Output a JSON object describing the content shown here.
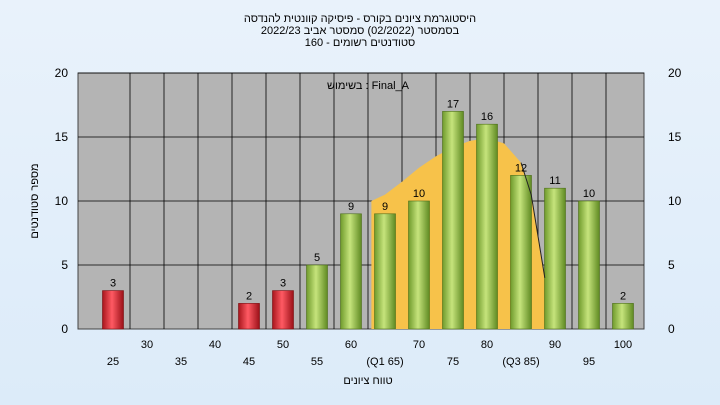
{
  "title": {
    "line1": "היסטוגרמת ציונים בקורס - פיסיקה קוונטית להנדסה",
    "line2": "בסמסטר  (02/2022)  סמסטר אביב 2022/23",
    "line3": "סטודנטים רשומים - 160"
  },
  "colors": {
    "plot_bg": "#b4b4b4",
    "grid": "#000000",
    "fail_bar": "#e0303a",
    "pass_bar": "#9acb50",
    "curve_fill": "#f7c24a",
    "page_bg": "#e2eefa"
  },
  "chart_data": {
    "type": "bar",
    "title": "היסטוגרמת ציונים בקורס - פיסיקה קוונטית להנדסה",
    "xlabel": "טווח ציונים",
    "ylabel": "מספר סטודנטים",
    "annotation": "בשימוש : Final_A",
    "ylim": [
      0,
      20
    ],
    "yticks": [
      0,
      5,
      10,
      15,
      20
    ],
    "grid": true,
    "categories": [
      "25",
      "30",
      "35",
      "40",
      "45",
      "50",
      "55",
      "60",
      "65",
      "70",
      "75",
      "80",
      "85",
      "90",
      "95",
      "100"
    ],
    "tick_labels": [
      "25",
      "30",
      "35",
      "40",
      "45",
      "50",
      "55",
      "60",
      "(Q1 65)",
      "70",
      "75",
      "80",
      "(Q3 85)",
      "90",
      "95",
      "100"
    ],
    "values": [
      3,
      0,
      0,
      0,
      2,
      3,
      5,
      9,
      9,
      10,
      17,
      16,
      12,
      11,
      10,
      2
    ],
    "bar_colors": [
      "fail",
      "fail",
      "fail",
      "fail",
      "fail",
      "fail",
      "pass",
      "pass",
      "pass",
      "pass",
      "pass",
      "pass",
      "pass",
      "pass",
      "pass",
      "pass"
    ],
    "curve": {
      "x": [
        63,
        65,
        67.5,
        70,
        72.5,
        75,
        77.5,
        80,
        82.5,
        85,
        86.5,
        88.5
      ],
      "y": [
        10,
        10.5,
        11.5,
        12.6,
        13.5,
        14.2,
        14.7,
        14.9,
        14.5,
        13.0,
        10.5,
        4
      ]
    }
  }
}
